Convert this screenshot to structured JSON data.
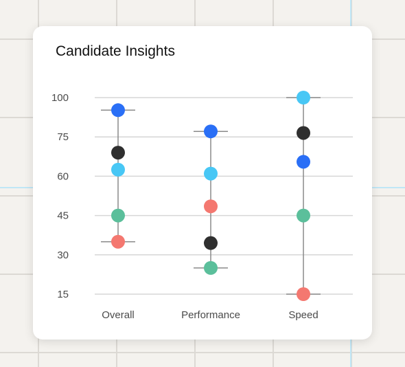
{
  "chart_data": {
    "type": "scatter",
    "title": "Candidate Insights",
    "categories": [
      "Overall",
      "Performance",
      "Speed"
    ],
    "y_ticks": [
      100,
      75,
      60,
      45,
      30,
      15
    ],
    "range_markers": {
      "Overall": {
        "max": 92,
        "min": 35
      },
      "Performance": {
        "max": 78.5,
        "min": 25
      },
      "Speed": {
        "max": 100,
        "min": 15
      }
    },
    "series": [
      {
        "color": "#2a6ff6",
        "values": [
          92,
          78.5,
          65.5
        ]
      },
      {
        "color": "#2f2f2f",
        "values": [
          69,
          34.5,
          77.5
        ]
      },
      {
        "color": "#48c7f5",
        "values": [
          62.5,
          61,
          100
        ]
      },
      {
        "color": "#f47870",
        "values": [
          35,
          48.5,
          15
        ]
      },
      {
        "color": "#5bbf9b",
        "values": [
          45,
          25,
          45
        ]
      }
    ],
    "grid": true
  }
}
